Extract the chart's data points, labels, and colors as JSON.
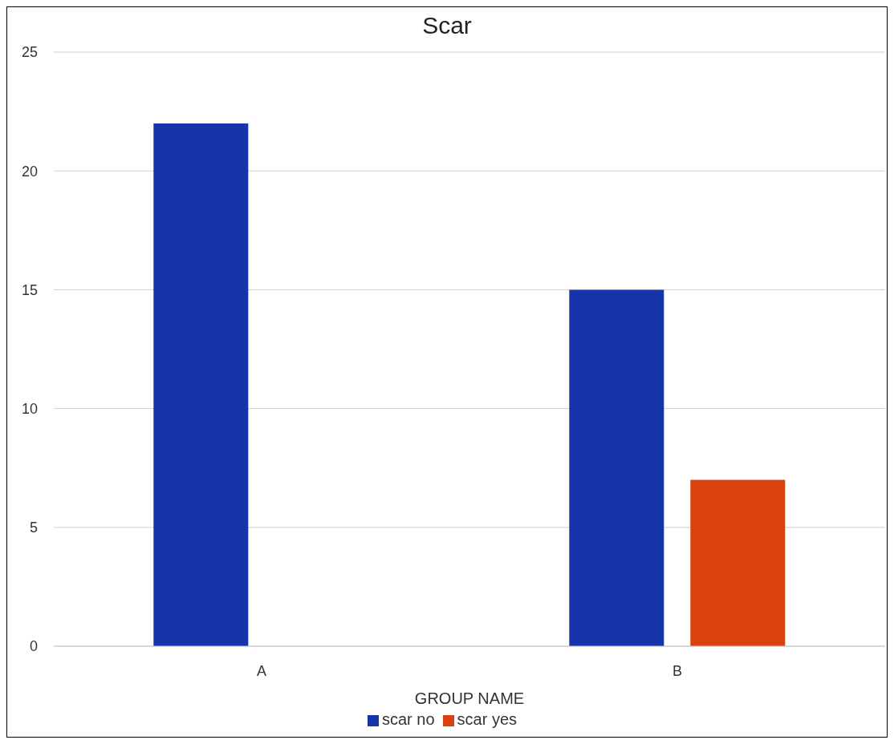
{
  "chart_data": {
    "type": "bar",
    "title": "Scar",
    "xlabel": "GROUP NAME",
    "categories": [
      "A",
      "B"
    ],
    "series": [
      {
        "name": "scar no",
        "color": "#1735a8",
        "values": [
          22,
          15
        ]
      },
      {
        "name": "scar yes",
        "color": "#d9420f",
        "values": [
          null,
          7
        ]
      }
    ],
    "ylim": [
      0,
      25
    ],
    "yticks": [
      0,
      5,
      10,
      15,
      20,
      25
    ],
    "grid": "y",
    "legend": "bottom"
  }
}
